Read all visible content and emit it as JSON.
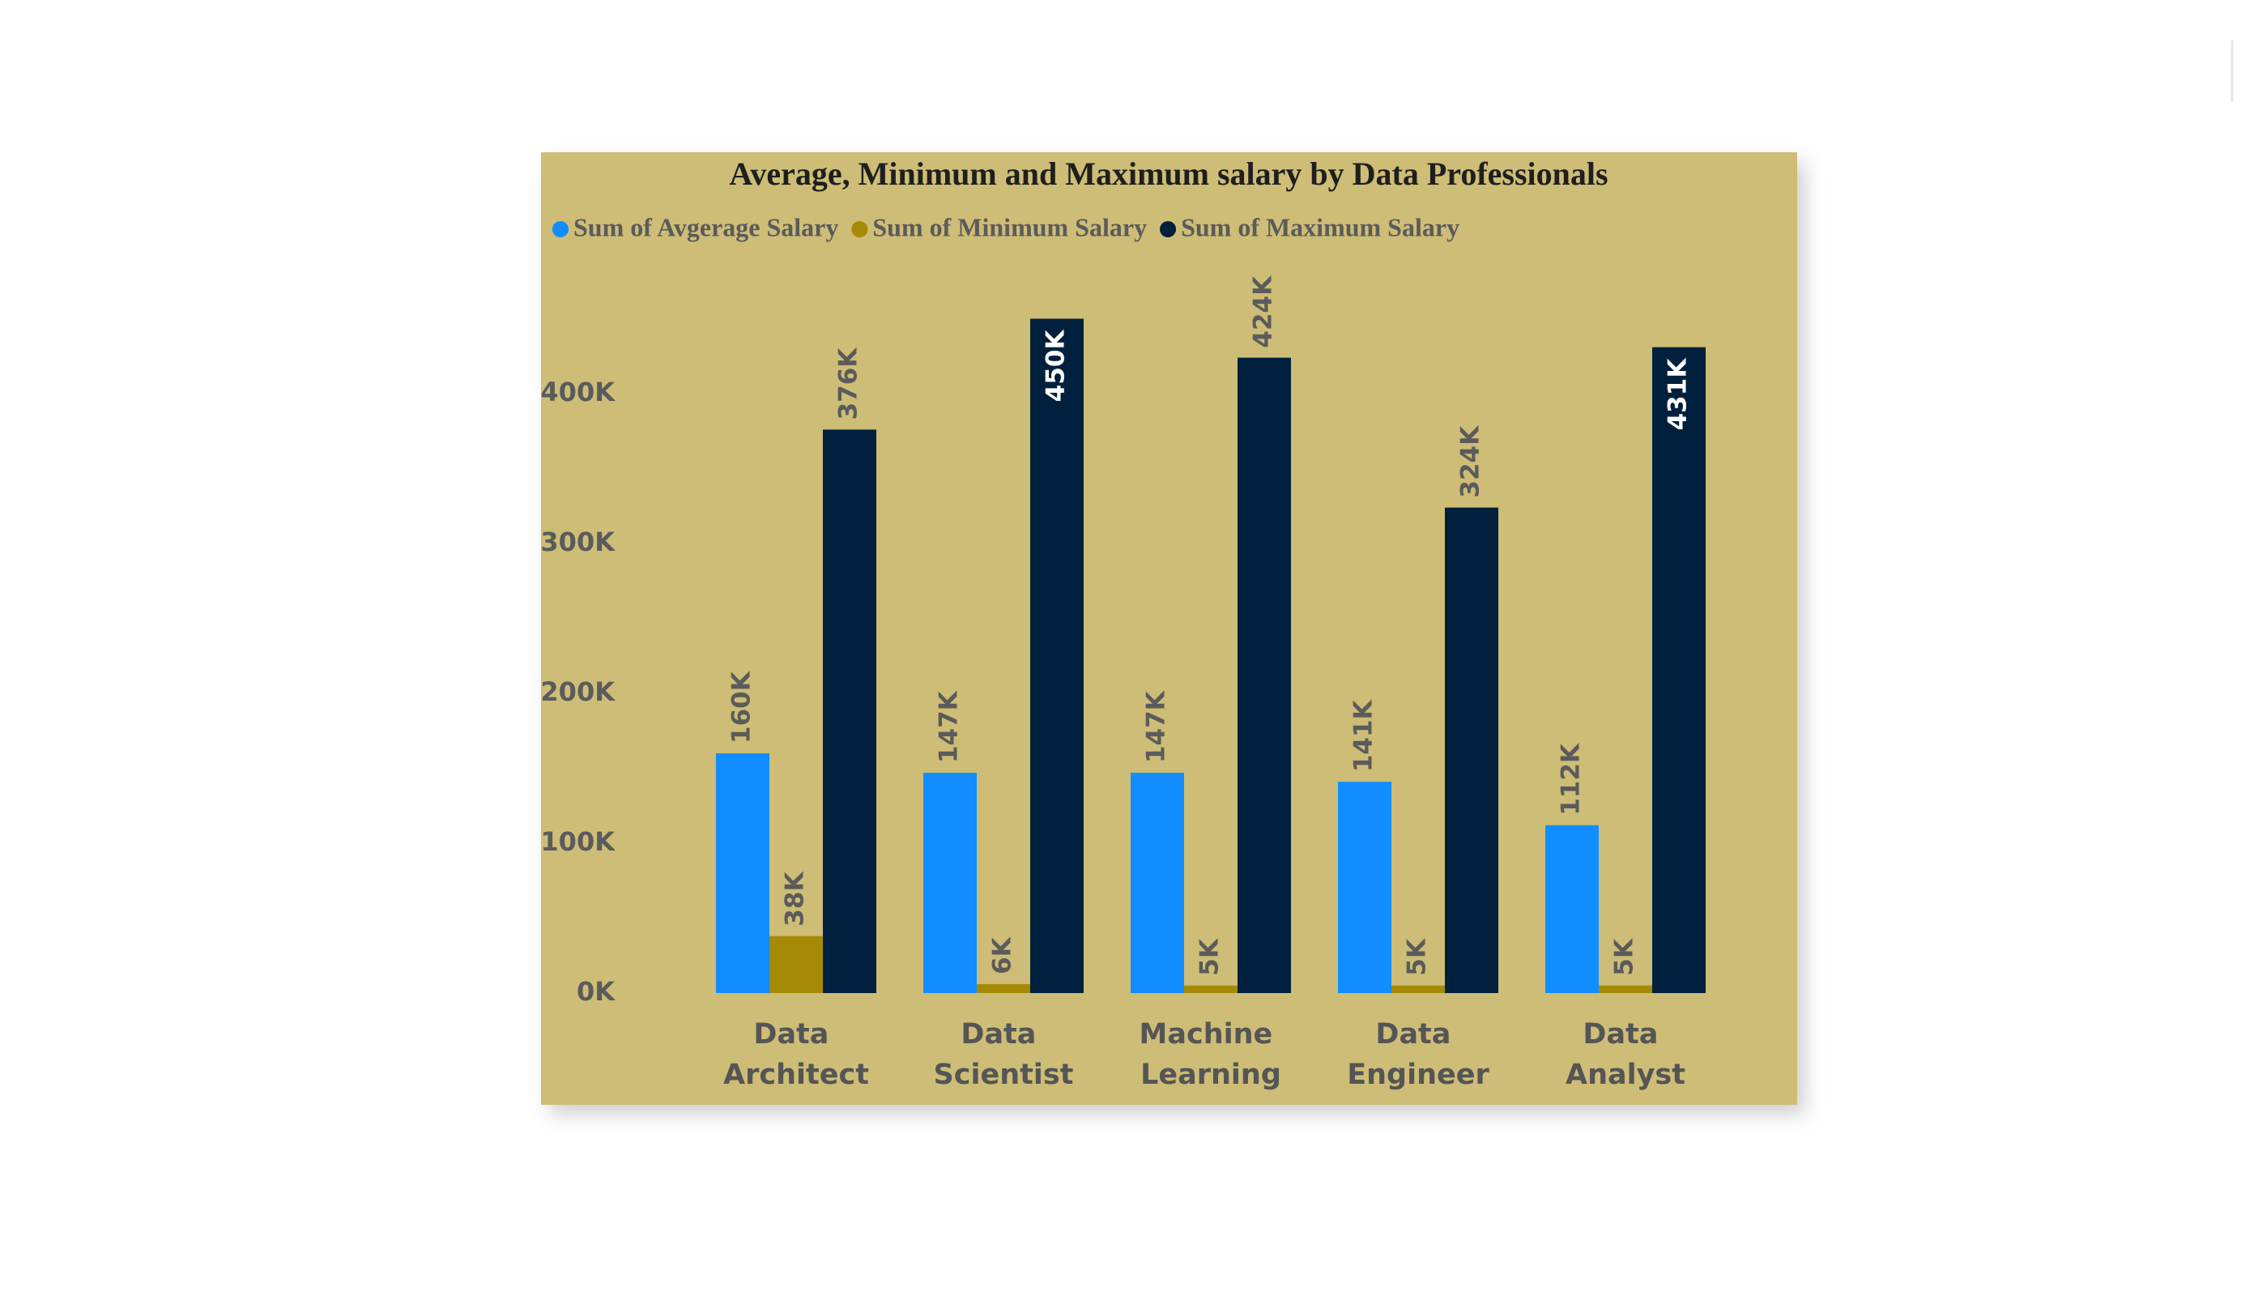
{
  "chart_data": {
    "type": "bar",
    "title": "Average, Minimum and Maximum salary by Data Professionals",
    "categories": [
      "Data Architect",
      "Data Scientist",
      "Machine Learning",
      "Data Engineer",
      "Data Analyst"
    ],
    "series": [
      {
        "name": "Sum of Avgerage Salary",
        "color": "#118dff",
        "values": [
          160000,
          147000,
          147000,
          141000,
          112000
        ],
        "value_labels": [
          "160K",
          "147K",
          "147K",
          "141K",
          "112K"
        ]
      },
      {
        "name": "Sum of Minimum Salary",
        "color": "#a68906",
        "values": [
          38000,
          6000,
          5000,
          5000,
          5000
        ],
        "value_labels": [
          "38K",
          "6K",
          "5K",
          "5K",
          "5K"
        ]
      },
      {
        "name": "Sum of Maximum Salary",
        "color": "#01203d",
        "values": [
          376000,
          450000,
          424000,
          324000,
          431000
        ],
        "value_labels": [
          "376K",
          "450K",
          "424K",
          "324K",
          "431K"
        ]
      }
    ],
    "ylim": [
      0,
      460000
    ],
    "yticks": [
      {
        "value": 0,
        "label": "0K"
      },
      {
        "value": 100000,
        "label": "100K"
      },
      {
        "value": 200000,
        "label": "200K"
      },
      {
        "value": 300000,
        "label": "300K"
      },
      {
        "value": 400000,
        "label": "400K"
      }
    ],
    "grid": false,
    "legend": "top-left"
  }
}
